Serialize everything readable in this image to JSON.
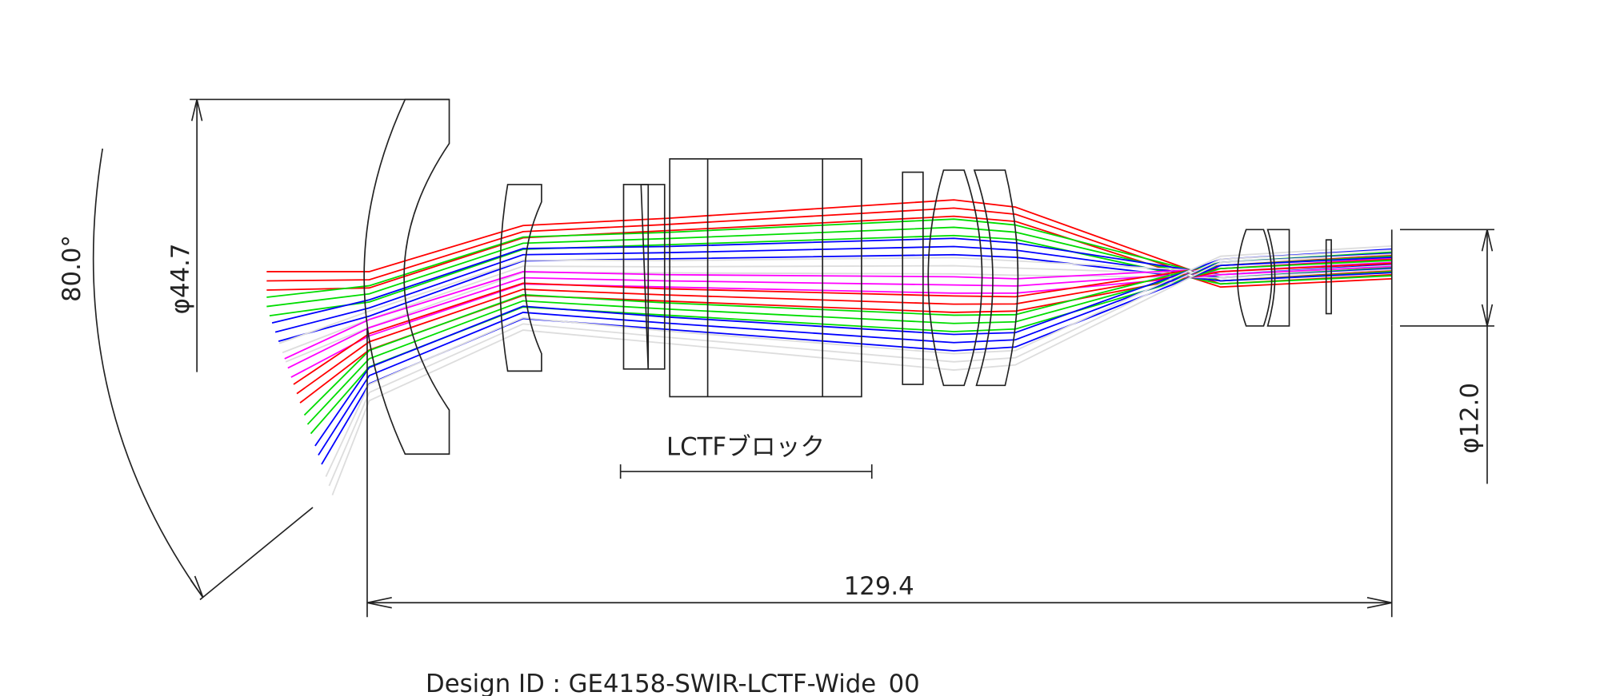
{
  "dimensions": {
    "field_angle": "80.0°",
    "front_diameter": "φ44.7",
    "image_diameter": "φ12.0",
    "total_length": "129.4"
  },
  "labels": {
    "block": "LCTFブロック",
    "design_id": "Design ID : GE4158-SWIR-LCTF-Wide_00"
  }
}
